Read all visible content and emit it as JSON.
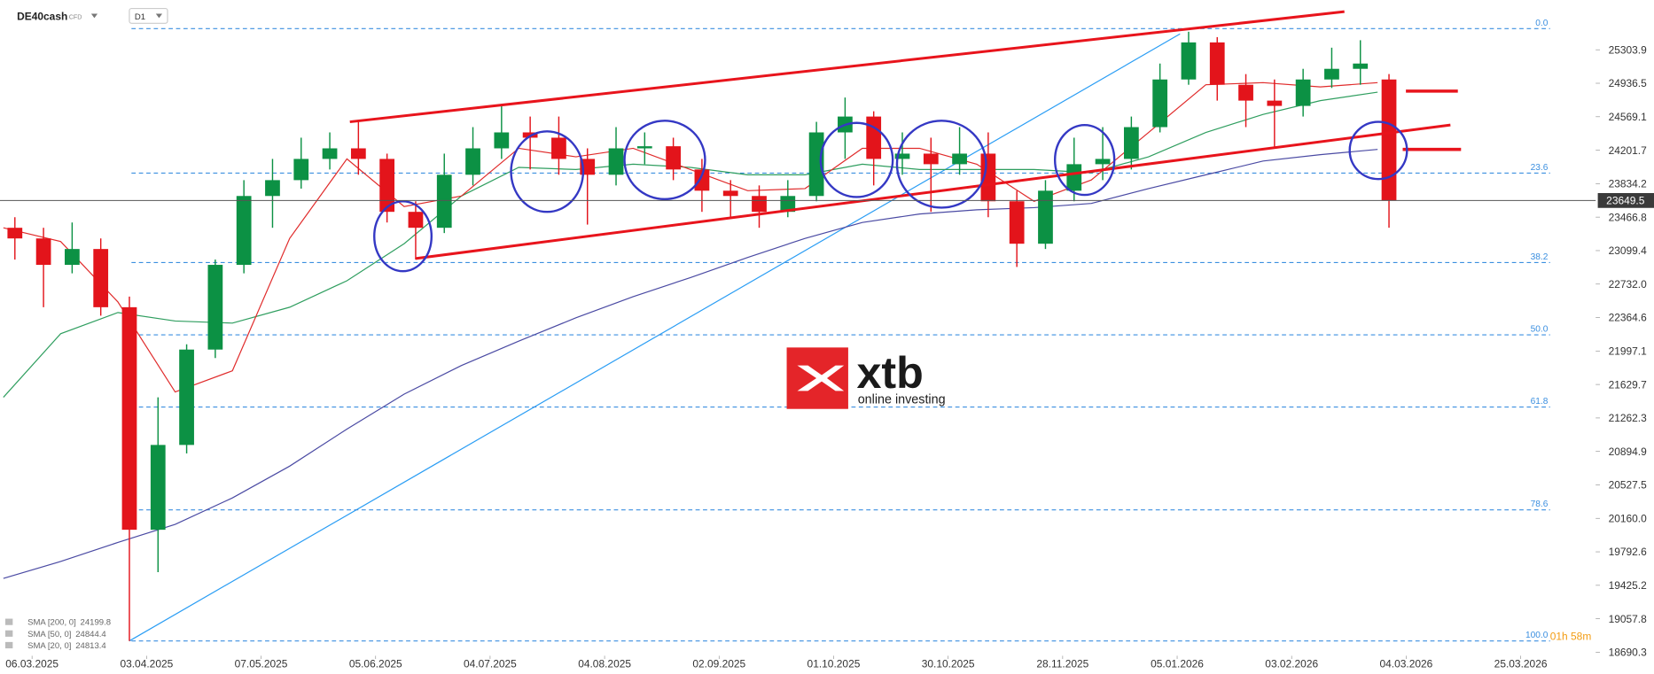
{
  "header": {
    "symbol": "DE40cash",
    "instrument_type": "CFD",
    "timeframe": "D1"
  },
  "watermark": {
    "brand": "xtb",
    "tagline": "online investing"
  },
  "timer": "01h 58m",
  "chart_data": {
    "type": "candlestick",
    "x": [
      -3,
      2,
      7,
      12,
      17,
      22,
      27,
      32,
      37,
      42,
      47,
      52,
      57,
      62,
      67,
      72,
      77,
      82,
      87,
      92,
      97,
      102,
      107,
      112,
      117,
      122,
      127,
      132,
      137,
      142,
      147,
      152,
      157,
      162,
      167,
      172,
      177,
      182,
      187,
      192,
      197,
      202,
      207,
      212,
      217,
      222,
      227,
      232,
      237
    ],
    "open": [
      23350,
      23233,
      22943,
      23117,
      22478,
      20035,
      20966,
      22013,
      22943,
      23699,
      23873,
      24106,
      24222,
      24106,
      23525,
      23350,
      23932,
      24222,
      24397,
      24339,
      24106,
      23932,
      24222,
      24245,
      23990,
      23757,
      23699,
      23525,
      23699,
      24397,
      24571,
      24106,
      24164,
      24048,
      24164,
      23641,
      23175,
      23757,
      24048,
      24106,
      24455,
      24978,
      25385,
      24920,
      24746,
      24688,
      24978,
      25095,
      24978
    ],
    "high": [
      23466,
      23350,
      23408,
      23233,
      22594,
      21489,
      22071,
      23001,
      23873,
      24106,
      24339,
      24397,
      24513,
      24164,
      23641,
      24164,
      24455,
      24688,
      24571,
      24571,
      24222,
      24455,
      24397,
      24339,
      24106,
      23873,
      23815,
      23873,
      24513,
      24780,
      24629,
      24397,
      24339,
      24455,
      24397,
      23757,
      23873,
      24339,
      24455,
      24571,
      25153,
      25502,
      25443,
      25037,
      24978,
      25095,
      25327,
      25409,
      25037
    ],
    "low": [
      23001,
      22478,
      22850,
      22385,
      18814,
      19570,
      20873,
      21920,
      22850,
      23350,
      23780,
      23990,
      23932,
      23408,
      23001,
      23292,
      23815,
      24106,
      23990,
      23932,
      23385,
      23815,
      24048,
      23873,
      23525,
      23466,
      23350,
      23466,
      23641,
      24106,
      23815,
      23932,
      23525,
      23932,
      23466,
      22920,
      23117,
      23641,
      23873,
      23990,
      24397,
      24920,
      24746,
      24455,
      24222,
      24571,
      24885,
      24920,
      23350
    ],
    "close": [
      23233,
      22943,
      23117,
      22478,
      20035,
      20966,
      22013,
      22943,
      23699,
      23873,
      24106,
      24222,
      24106,
      23525,
      23350,
      23932,
      24222,
      24397,
      24339,
      24106,
      23932,
      24222,
      24245,
      23990,
      23757,
      23699,
      23525,
      23699,
      24397,
      24571,
      24106,
      24164,
      24048,
      24164,
      23641,
      23175,
      23757,
      24048,
      24106,
      24455,
      24978,
      25385,
      24920,
      24746,
      24688,
      24978,
      25095,
      25153,
      23649.5
    ],
    "up_color": "#0c9144",
    "down_color": "#e3141b",
    "sma_x": [
      -5,
      5,
      15,
      25,
      35,
      45,
      55,
      65,
      75,
      85,
      95,
      105,
      115,
      125,
      135,
      145,
      155,
      165,
      175,
      185,
      195,
      205,
      215,
      225,
      235
    ],
    "sma": [
      {
        "name": "SMA [200, 0]",
        "last": 24199.8,
        "color": "#4a4aa3",
        "values": [
          19501,
          19687,
          19896,
          20094,
          20384,
          20733,
          21140,
          21524,
          21838,
          22106,
          22361,
          22594,
          22803,
          23024,
          23234,
          23408,
          23501,
          23548,
          23571,
          23618,
          23780,
          23932,
          24083,
          24153,
          24211
        ]
      },
      {
        "name": "SMA [50, 0]",
        "last": 24844.4,
        "color": "#2f9e5f",
        "values": [
          21489,
          22187,
          22420,
          22327,
          22303,
          22478,
          22769,
          23176,
          23699,
          24013,
          23990,
          24048,
          24013,
          23932,
          23932,
          24048,
          23990,
          23990,
          23990,
          23955,
          24129,
          24397,
          24594,
          24746,
          24839
        ]
      },
      {
        "name": "SMA [20, 0]",
        "last": 24813.4,
        "color": "#e02b2b",
        "values": [
          23350,
          23199,
          22536,
          21547,
          21780,
          23234,
          24106,
          23583,
          23699,
          24222,
          24129,
          24222,
          23990,
          23757,
          23780,
          24222,
          24222,
          24048,
          23641,
          23874,
          24397,
          24920,
          24943,
          24897,
          24943
        ]
      }
    ],
    "last_price": 23649.5,
    "fib_levels": [
      {
        "value": 25536,
        "label": "0.0"
      },
      {
        "value": 23950,
        "label": "23.6"
      },
      {
        "value": 22968,
        "label": "38.2"
      },
      {
        "value": 22175,
        "label": "50.0"
      },
      {
        "value": 21382,
        "label": "61.8"
      },
      {
        "value": 20253,
        "label": "78.6"
      },
      {
        "value": 18814,
        "label": "100.0"
      }
    ],
    "ylim": [
      18651.5,
      25850.5
    ],
    "yticks": [
      25303.9,
      24936.5,
      24569.1,
      24201.7,
      23834.2,
      23466.8,
      23099.4,
      {
        "value": 22732.0,
        "label": "22732.0"
      },
      22364.6,
      21997.1,
      21629.7,
      21262.3,
      20894.9,
      20527.5,
      {
        "value": 20160.0,
        "label": "20160.0"
      },
      19792.6,
      19425.2,
      19057.8,
      18690.3
    ],
    "xlim": [
      -5.6,
      273.1
    ],
    "xticks": [
      {
        "value": 0,
        "label": "06.03.2025"
      },
      {
        "value": 20,
        "label": "03.04.2025"
      },
      {
        "value": 40,
        "label": "07.05.2025"
      },
      {
        "value": 60,
        "label": "05.06.2025"
      },
      {
        "value": 80,
        "label": "04.07.2025"
      },
      {
        "value": 100,
        "label": "04.08.2025"
      },
      {
        "value": 120,
        "label": "02.09.2025"
      },
      {
        "value": 140,
        "label": "01.10.2025"
      },
      {
        "value": 160,
        "label": "30.10.2025"
      },
      {
        "value": 180,
        "label": "28.11.2025"
      },
      {
        "value": 200,
        "label": "05.01.2026"
      },
      {
        "value": 220,
        "label": "03.02.2026"
      },
      {
        "value": 240,
        "label": "04.03.2026"
      },
      {
        "value": 260,
        "label": "25.03.2026"
      }
    ]
  }
}
